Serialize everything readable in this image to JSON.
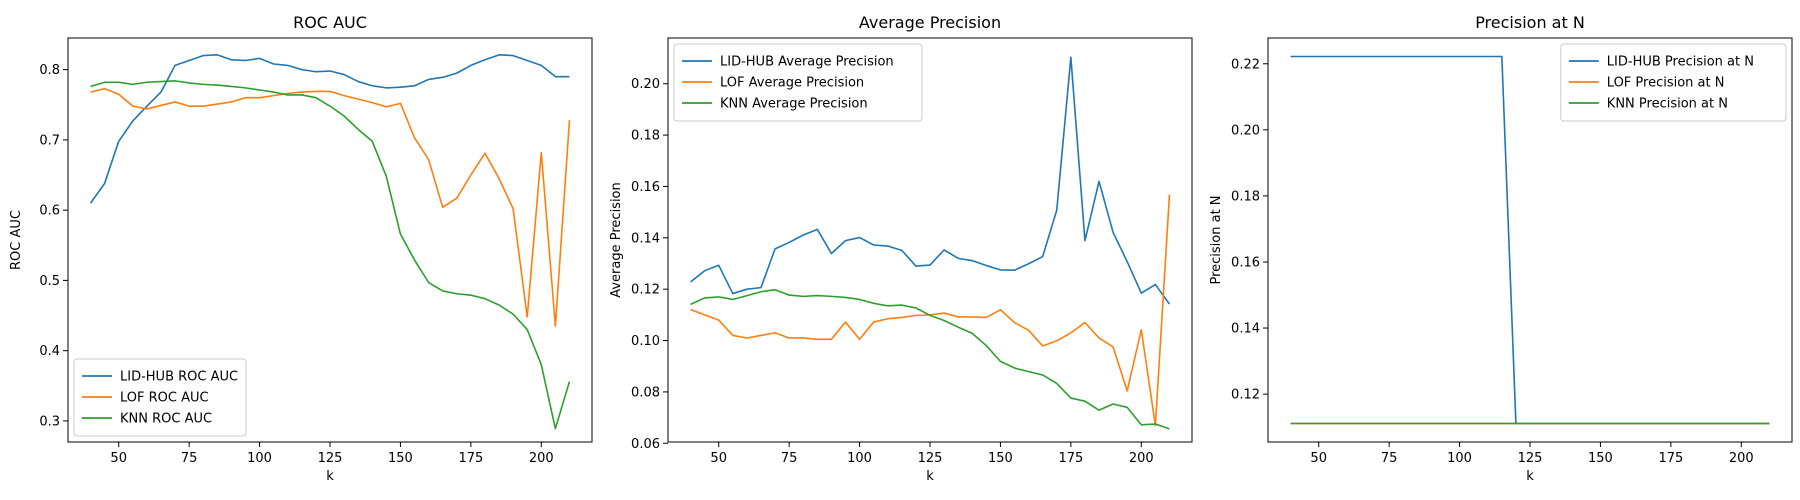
{
  "colors": {
    "series": [
      "#1f77b4",
      "#ff7f0e",
      "#2ca02c"
    ],
    "axes": "#000000",
    "background": "#ffffff"
  },
  "chart_data": [
    {
      "type": "line",
      "title": "ROC AUC",
      "xlabel": "k",
      "ylabel": "ROC AUC",
      "xlim": [
        32,
        218
      ],
      "ylim": [
        0.27,
        0.845
      ],
      "xticks": [
        50,
        75,
        100,
        125,
        150,
        175,
        200
      ],
      "yticks": [
        0.3,
        0.4,
        0.5,
        0.6,
        0.7,
        0.8
      ],
      "legend": "lower-left",
      "grid": false,
      "x": [
        40,
        45,
        50,
        55,
        60,
        65,
        70,
        75,
        80,
        85,
        90,
        95,
        100,
        105,
        110,
        115,
        120,
        125,
        130,
        135,
        140,
        145,
        150,
        155,
        160,
        165,
        170,
        175,
        180,
        185,
        190,
        195,
        200,
        205,
        210
      ],
      "series": [
        {
          "name": "LID-HUB ROC AUC",
          "values": [
            0.61,
            0.638,
            0.698,
            0.727,
            0.748,
            0.768,
            0.806,
            0.813,
            0.82,
            0.821,
            0.814,
            0.813,
            0.816,
            0.808,
            0.806,
            0.8,
            0.797,
            0.798,
            0.793,
            0.783,
            0.777,
            0.774,
            0.775,
            0.777,
            0.786,
            0.789,
            0.795,
            0.806,
            0.814,
            0.821,
            0.82,
            0.813,
            0.806,
            0.79,
            0.79
          ]
        },
        {
          "name": "LOF ROC AUC",
          "values": [
            0.768,
            0.773,
            0.765,
            0.748,
            0.744,
            0.749,
            0.754,
            0.748,
            0.748,
            0.751,
            0.754,
            0.76,
            0.76,
            0.763,
            0.766,
            0.768,
            0.769,
            0.769,
            0.763,
            0.758,
            0.753,
            0.747,
            0.752,
            0.703,
            0.672,
            0.604,
            0.617,
            0.65,
            0.681,
            0.645,
            0.602,
            0.448,
            0.682,
            0.435,
            0.728
          ]
        },
        {
          "name": "KNN ROC AUC",
          "values": [
            0.776,
            0.782,
            0.782,
            0.779,
            0.782,
            0.783,
            0.784,
            0.781,
            0.779,
            0.778,
            0.776,
            0.774,
            0.771,
            0.768,
            0.764,
            0.764,
            0.76,
            0.748,
            0.734,
            0.715,
            0.698,
            0.648,
            0.566,
            0.529,
            0.497,
            0.485,
            0.481,
            0.479,
            0.474,
            0.465,
            0.452,
            0.43,
            0.38,
            0.289,
            0.356
          ]
        }
      ]
    },
    {
      "type": "line",
      "title": "Average Precision",
      "xlabel": "k",
      "ylabel": "Average Precision",
      "xlim": [
        32,
        218
      ],
      "ylim": [
        0.0605,
        0.2178
      ],
      "xticks": [
        50,
        75,
        100,
        125,
        150,
        175,
        200
      ],
      "yticks": [
        0.06,
        0.08,
        0.1,
        0.12,
        0.14,
        0.16,
        0.18,
        0.2
      ],
      "legend": "upper-left",
      "grid": false,
      "x": [
        40,
        45,
        50,
        55,
        60,
        65,
        70,
        75,
        80,
        85,
        90,
        95,
        100,
        105,
        110,
        115,
        120,
        125,
        130,
        135,
        140,
        145,
        150,
        155,
        160,
        165,
        170,
        175,
        180,
        185,
        190,
        195,
        200,
        205,
        210
      ],
      "series": [
        {
          "name": "LID-HUB Average Precision",
          "values": [
            0.1228,
            0.1272,
            0.1293,
            0.1183,
            0.12,
            0.1206,
            0.1357,
            0.1382,
            0.1411,
            0.1433,
            0.1339,
            0.1389,
            0.1401,
            0.1372,
            0.1368,
            0.1351,
            0.129,
            0.1294,
            0.1353,
            0.132,
            0.1311,
            0.1292,
            0.1275,
            0.1274,
            0.1299,
            0.1327,
            0.1508,
            0.2103,
            0.1389,
            0.162,
            0.1421,
            0.1307,
            0.1185,
            0.1218,
            0.1142
          ]
        },
        {
          "name": "LOF Average Precision",
          "values": [
            0.1121,
            0.11,
            0.108,
            0.102,
            0.101,
            0.102,
            0.103,
            0.101,
            0.101,
            0.1005,
            0.1005,
            0.1072,
            0.1005,
            0.1072,
            0.1085,
            0.109,
            0.1098,
            0.11,
            0.1107,
            0.1092,
            0.1092,
            0.109,
            0.112,
            0.107,
            0.104,
            0.0979,
            0.0999,
            0.103,
            0.107,
            0.101,
            0.0975,
            0.0804,
            0.1042,
            0.0669,
            0.1568
          ]
        },
        {
          "name": "KNN Average Precision",
          "values": [
            0.1141,
            0.1166,
            0.117,
            0.116,
            0.1175,
            0.119,
            0.1198,
            0.1177,
            0.1172,
            0.1175,
            0.1172,
            0.1168,
            0.116,
            0.1145,
            0.1135,
            0.1138,
            0.1127,
            0.1098,
            0.1078,
            0.1052,
            0.1028,
            0.098,
            0.0919,
            0.0893,
            0.0879,
            0.0866,
            0.0833,
            0.0776,
            0.0764,
            0.0729,
            0.0753,
            0.074,
            0.0672,
            0.0675,
            0.0656
          ]
        }
      ]
    },
    {
      "type": "line",
      "title": "Precision at N",
      "xlabel": "k",
      "ylabel": "Precision at N",
      "xlim": [
        32,
        218
      ],
      "ylim": [
        0.1055,
        0.2278
      ],
      "xticks": [
        50,
        75,
        100,
        125,
        150,
        175,
        200
      ],
      "yticks": [
        0.12,
        0.14,
        0.16,
        0.18,
        0.2,
        0.22
      ],
      "legend": "upper-right",
      "grid": false,
      "x": [
        40,
        45,
        50,
        55,
        60,
        65,
        70,
        75,
        80,
        85,
        90,
        95,
        100,
        105,
        110,
        115,
        120,
        125,
        130,
        135,
        140,
        145,
        150,
        155,
        160,
        165,
        170,
        175,
        180,
        185,
        190,
        195,
        200,
        205,
        210
      ],
      "series": [
        {
          "name": "LID-HUB Precision at N",
          "values": [
            0.2222,
            0.2222,
            0.2222,
            0.2222,
            0.2222,
            0.2222,
            0.2222,
            0.2222,
            0.2222,
            0.2222,
            0.2222,
            0.2222,
            0.2222,
            0.2222,
            0.2222,
            0.2222,
            0.1111,
            0.1111,
            0.1111,
            0.1111,
            0.1111,
            0.1111,
            0.1111,
            0.1111,
            0.1111,
            0.1111,
            0.1111,
            0.1111,
            0.1111,
            0.1111,
            0.1111,
            0.1111,
            0.1111,
            0.1111,
            0.1111
          ]
        },
        {
          "name": "LOF Precision at N",
          "values": [
            0.1111,
            0.1111,
            0.1111,
            0.1111,
            0.1111,
            0.1111,
            0.1111,
            0.1111,
            0.1111,
            0.1111,
            0.1111,
            0.1111,
            0.1111,
            0.1111,
            0.1111,
            0.1111,
            0.1111,
            0.1111,
            0.1111,
            0.1111,
            0.1111,
            0.1111,
            0.1111,
            0.1111,
            0.1111,
            0.1111,
            0.1111,
            0.1111,
            0.1111,
            0.1111,
            0.1111,
            0.1111,
            0.1111,
            0.1111,
            0.1111
          ]
        },
        {
          "name": "KNN Precision at N",
          "values": [
            0.1111,
            0.1111,
            0.1111,
            0.1111,
            0.1111,
            0.1111,
            0.1111,
            0.1111,
            0.1111,
            0.1111,
            0.1111,
            0.1111,
            0.1111,
            0.1111,
            0.1111,
            0.1111,
            0.1111,
            0.1111,
            0.1111,
            0.1111,
            0.1111,
            0.1111,
            0.1111,
            0.1111,
            0.1111,
            0.1111,
            0.1111,
            0.1111,
            0.1111,
            0.1111,
            0.1111,
            0.1111,
            0.1111,
            0.1111,
            0.1111
          ]
        }
      ]
    }
  ]
}
